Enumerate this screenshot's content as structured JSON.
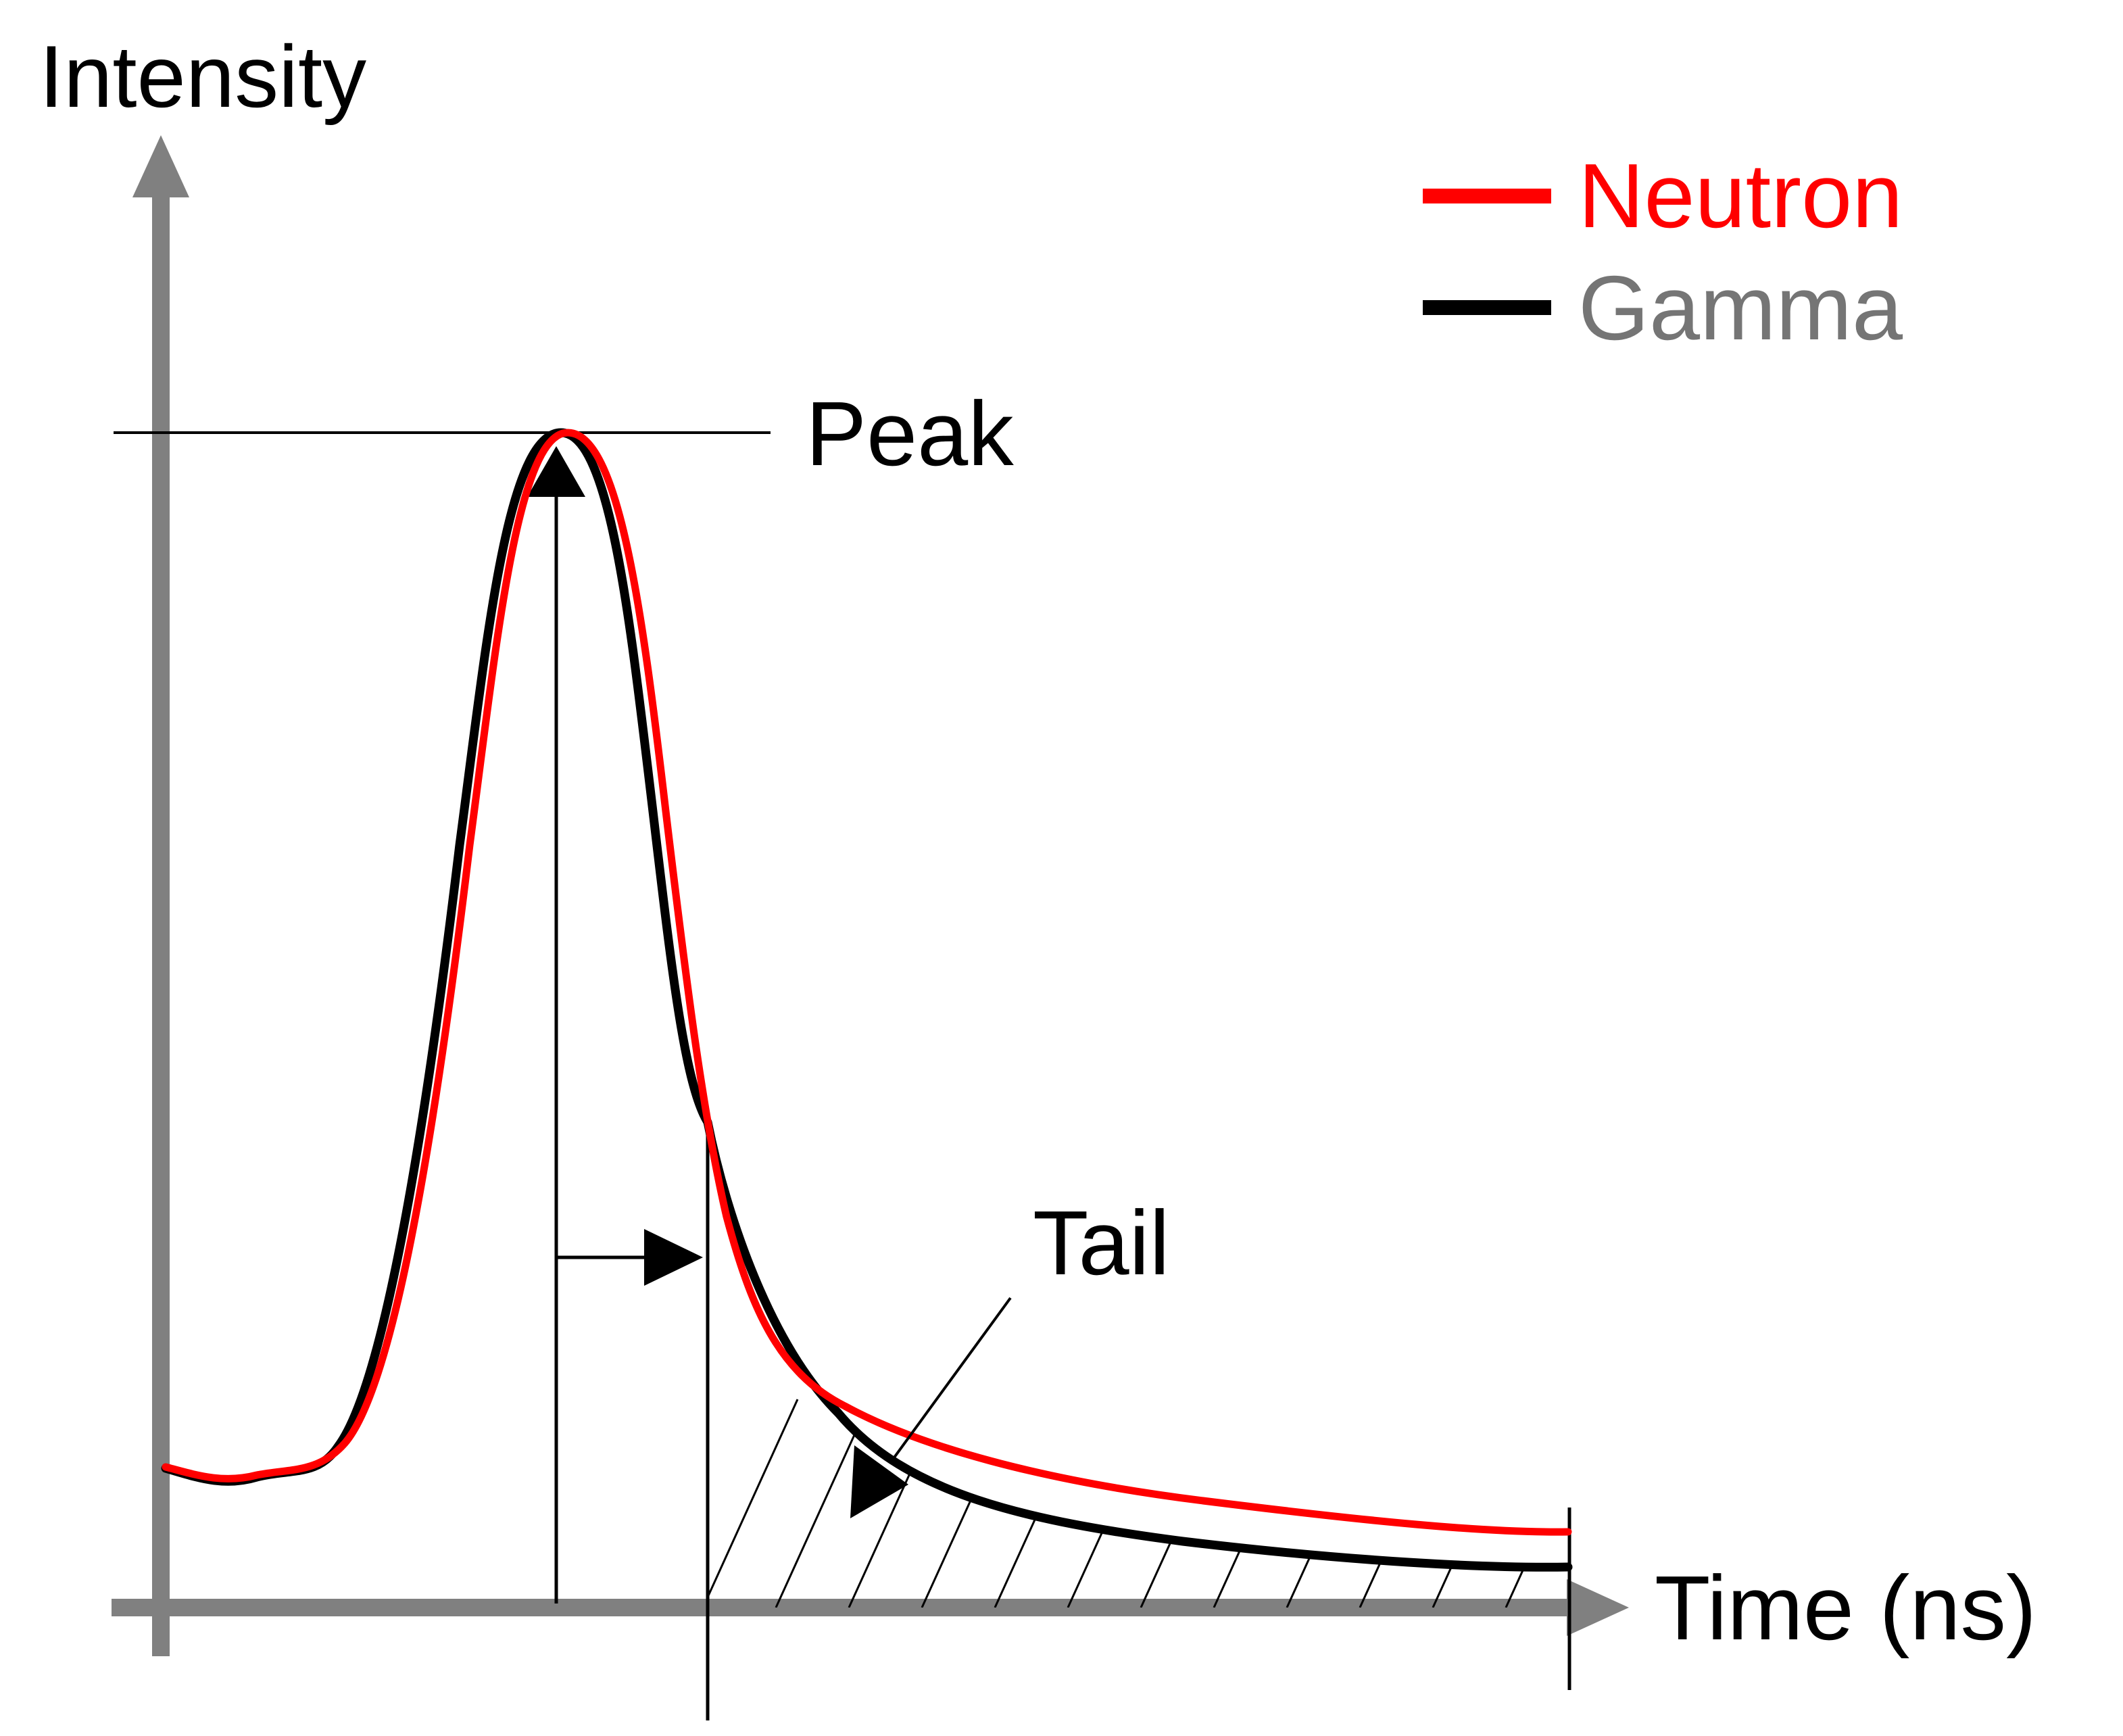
{
  "axes": {
    "y_label": "Intensity",
    "x_label": "Time (ns)"
  },
  "legend": {
    "items": [
      {
        "label": "Neutron",
        "line_color": "#ff0000",
        "text_color": "#ff0000"
      },
      {
        "label": "Gamma",
        "line_color": "#000000",
        "text_color": "#757575"
      }
    ]
  },
  "annotations": {
    "peak": "Peak",
    "tail": "Tail"
  },
  "colors": {
    "axis": "#808080",
    "neutron": "#ff0000",
    "gamma": "#000000",
    "guide": "#000000",
    "hatch": "#000000"
  }
}
